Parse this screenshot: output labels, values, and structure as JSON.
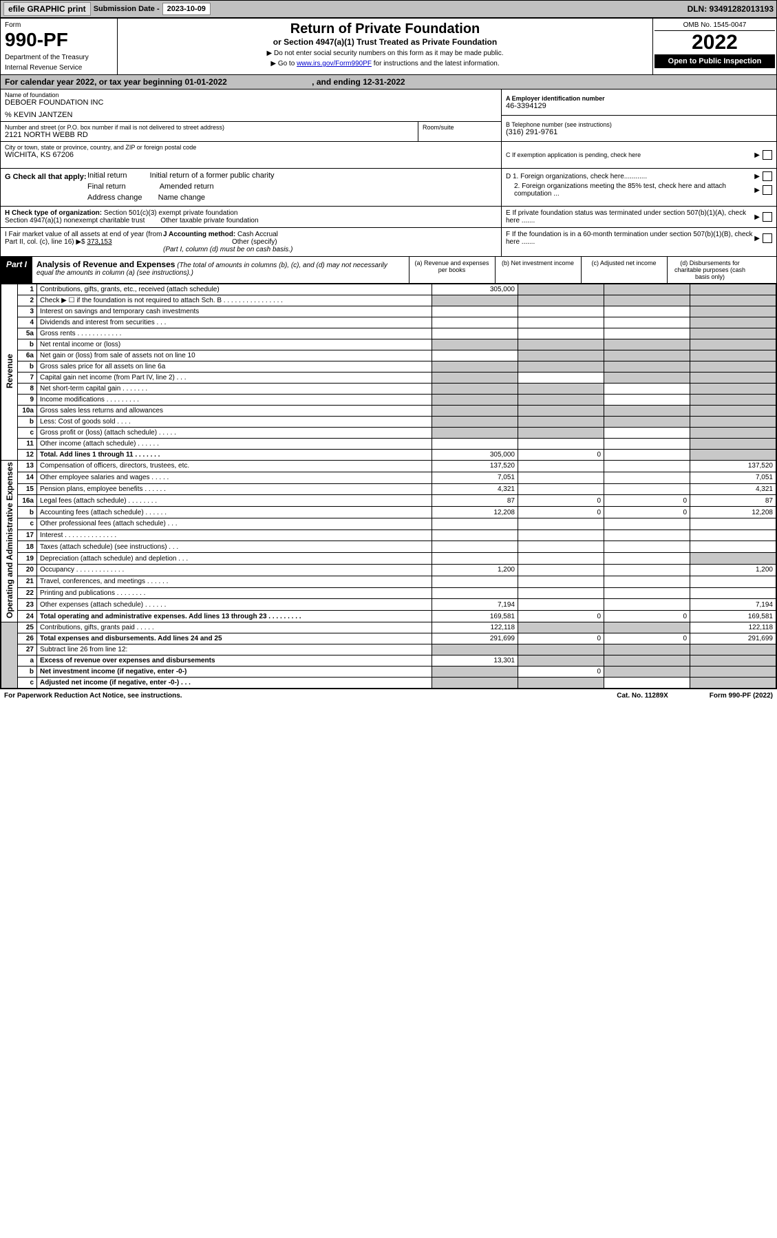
{
  "topbar": {
    "efile": "efile GRAPHIC print",
    "sub_label": "Submission Date - ",
    "sub_date": "2023-10-09",
    "dln": "DLN: 93491282013193"
  },
  "header": {
    "form_label": "Form",
    "form_no": "990-PF",
    "dept1": "Department of the Treasury",
    "dept2": "Internal Revenue Service",
    "title": "Return of Private Foundation",
    "subtitle": "or Section 4947(a)(1) Trust Treated as Private Foundation",
    "note1": "▶ Do not enter social security numbers on this form as it may be made public.",
    "note2_pre": "▶ Go to ",
    "note2_link": "www.irs.gov/Form990PF",
    "note2_post": " for instructions and the latest information.",
    "omb": "OMB No. 1545-0047",
    "year": "2022",
    "open": "Open to Public Inspection"
  },
  "cal": {
    "text_pre": "For calendar year 2022, or tax year beginning ",
    "begin": "01-01-2022",
    "text_mid": " , and ending ",
    "end": "12-31-2022"
  },
  "foundation": {
    "name_lbl": "Name of foundation",
    "name": "DEBOER FOUNDATION INC",
    "care_of": "% KEVIN JANTZEN",
    "addr_lbl": "Number and street (or P.O. box number if mail is not delivered to street address)",
    "addr": "2121 NORTH WEBB RD",
    "room_lbl": "Room/suite",
    "city_lbl": "City or town, state or province, country, and ZIP or foreign postal code",
    "city": "WICHITA, KS  67206"
  },
  "right_info": {
    "a_lbl": "A Employer identification number",
    "a_val": "46-3394129",
    "b_lbl": "B Telephone number (see instructions)",
    "b_val": "(316) 291-9761",
    "c_lbl": "C If exemption application is pending, check here"
  },
  "g": {
    "label": "G Check all that apply:",
    "opts": [
      "Initial return",
      "Initial return of a former public charity",
      "Final return",
      "Amended return",
      "Address change",
      "Name change"
    ]
  },
  "d": {
    "d1": "D 1. Foreign organizations, check here............",
    "d2": "2. Foreign organizations meeting the 85% test, check here and attach computation ...",
    "e": "E If private foundation status was terminated under section 507(b)(1)(A), check here .......",
    "f": "F If the foundation is in a 60-month termination under section 507(b)(1)(B), check here ......."
  },
  "h": {
    "label": "H Check type of organization:",
    "opt1": "Section 501(c)(3) exempt private foundation",
    "opt2": "Section 4947(a)(1) nonexempt charitable trust",
    "opt3": "Other taxable private foundation"
  },
  "i": {
    "label": "I Fair market value of all assets at end of year (from Part II, col. (c), line 16) ▶$",
    "val": "373,153"
  },
  "j": {
    "label": "J Accounting method:",
    "cash": "Cash",
    "accrual": "Accrual",
    "other": "Other (specify)",
    "note": "(Part I, column (d) must be on cash basis.)"
  },
  "part1": {
    "tag": "Part I",
    "title": "Analysis of Revenue and Expenses",
    "title_note": "(The total of amounts in columns (b), (c), and (d) may not necessarily equal the amounts in column (a) (see instructions).)",
    "col_a": "(a) Revenue and expenses per books",
    "col_b": "(b) Net investment income",
    "col_c": "(c) Adjusted net income",
    "col_d": "(d) Disbursements for charitable purposes (cash basis only)"
  },
  "sections": {
    "revenue": "Revenue",
    "opex": "Operating and Administrative Expenses"
  },
  "rows": [
    {
      "n": "1",
      "d": "Contributions, gifts, grants, etc., received (attach schedule)",
      "a": "305,000",
      "b": "s",
      "c": "s",
      "dd": "s"
    },
    {
      "n": "2",
      "d": "Check ▶ ☐ if the foundation is not required to attach Sch. B   .   .   .   .   .   .   .   .   .   .   .   .   .   .   .   .",
      "a": "s",
      "b": "s",
      "c": "s",
      "dd": "s"
    },
    {
      "n": "3",
      "d": "Interest on savings and temporary cash investments",
      "a": "",
      "b": "",
      "c": "",
      "dd": "s"
    },
    {
      "n": "4",
      "d": "Dividends and interest from securities   .   .   .",
      "a": "",
      "b": "",
      "c": "",
      "dd": "s"
    },
    {
      "n": "5a",
      "d": "Gross rents   .   .   .   .   .   .   .   .   .   .   .   .",
      "a": "",
      "b": "",
      "c": "",
      "dd": "s"
    },
    {
      "n": "b",
      "d": "Net rental income or (loss)  ",
      "a": "s",
      "b": "s",
      "c": "s",
      "dd": "s"
    },
    {
      "n": "6a",
      "d": "Net gain or (loss) from sale of assets not on line 10",
      "a": "",
      "b": "s",
      "c": "s",
      "dd": "s"
    },
    {
      "n": "b",
      "d": "Gross sales price for all assets on line 6a",
      "a": "s",
      "b": "s",
      "c": "s",
      "dd": "s"
    },
    {
      "n": "7",
      "d": "Capital gain net income (from Part IV, line 2)   .   .   .",
      "a": "s",
      "b": "",
      "c": "s",
      "dd": "s"
    },
    {
      "n": "8",
      "d": "Net short-term capital gain   .   .   .   .   .   .   .",
      "a": "s",
      "b": "s",
      "c": "",
      "dd": "s"
    },
    {
      "n": "9",
      "d": "Income modifications   .   .   .   .   .   .   .   .   .",
      "a": "s",
      "b": "s",
      "c": "",
      "dd": "s"
    },
    {
      "n": "10a",
      "d": "Gross sales less returns and allowances",
      "a": "s",
      "b": "s",
      "c": "s",
      "dd": "s"
    },
    {
      "n": "b",
      "d": "Less: Cost of goods sold   .   .   .   .",
      "a": "s",
      "b": "s",
      "c": "s",
      "dd": "s"
    },
    {
      "n": "c",
      "d": "Gross profit or (loss) (attach schedule)   .   .   .   .   .",
      "a": "s",
      "b": "s",
      "c": "",
      "dd": "s"
    },
    {
      "n": "11",
      "d": "Other income (attach schedule)   .   .   .   .   .   .",
      "a": "",
      "b": "",
      "c": "",
      "dd": "s"
    },
    {
      "n": "12",
      "d": "Total. Add lines 1 through 11   .   .   .   .   .   .   .",
      "a": "305,000",
      "b": "0",
      "c": "",
      "dd": "s",
      "bold": true
    },
    {
      "n": "13",
      "d": "Compensation of officers, directors, trustees, etc.",
      "a": "137,520",
      "b": "",
      "c": "",
      "dd": "137,520"
    },
    {
      "n": "14",
      "d": "Other employee salaries and wages   .   .   .   .   .",
      "a": "7,051",
      "b": "",
      "c": "",
      "dd": "7,051"
    },
    {
      "n": "15",
      "d": "Pension plans, employee benefits   .   .   .   .   .   .",
      "a": "4,321",
      "b": "",
      "c": "",
      "dd": "4,321"
    },
    {
      "n": "16a",
      "d": "Legal fees (attach schedule)   .   .   .   .   .   .   .   .",
      "a": "87",
      "b": "0",
      "c": "0",
      "dd": "87"
    },
    {
      "n": "b",
      "d": "Accounting fees (attach schedule)   .   .   .   .   .   .",
      "a": "12,208",
      "b": "0",
      "c": "0",
      "dd": "12,208"
    },
    {
      "n": "c",
      "d": "Other professional fees (attach schedule)   .   .   .",
      "a": "",
      "b": "",
      "c": "",
      "dd": ""
    },
    {
      "n": "17",
      "d": "Interest   .   .   .   .   .   .   .   .   .   .   .   .   .   .",
      "a": "",
      "b": "",
      "c": "",
      "dd": ""
    },
    {
      "n": "18",
      "d": "Taxes (attach schedule) (see instructions)   .   .   .",
      "a": "",
      "b": "",
      "c": "",
      "dd": ""
    },
    {
      "n": "19",
      "d": "Depreciation (attach schedule) and depletion   .   .   .",
      "a": "",
      "b": "",
      "c": "",
      "dd": "s"
    },
    {
      "n": "20",
      "d": "Occupancy   .   .   .   .   .   .   .   .   .   .   .   .   .",
      "a": "1,200",
      "b": "",
      "c": "",
      "dd": "1,200"
    },
    {
      "n": "21",
      "d": "Travel, conferences, and meetings   .   .   .   .   .   .",
      "a": "",
      "b": "",
      "c": "",
      "dd": ""
    },
    {
      "n": "22",
      "d": "Printing and publications   .   .   .   .   .   .   .   .",
      "a": "",
      "b": "",
      "c": "",
      "dd": ""
    },
    {
      "n": "23",
      "d": "Other expenses (attach schedule)   .   .   .   .   .   .",
      "a": "7,194",
      "b": "",
      "c": "",
      "dd": "7,194"
    },
    {
      "n": "24",
      "d": "Total operating and administrative expenses. Add lines 13 through 23   .   .   .   .   .   .   .   .   .",
      "a": "169,581",
      "b": "0",
      "c": "0",
      "dd": "169,581",
      "bold": true
    },
    {
      "n": "25",
      "d": "Contributions, gifts, grants paid   .   .   .   .   .",
      "a": "122,118",
      "b": "s",
      "c": "s",
      "dd": "122,118"
    },
    {
      "n": "26",
      "d": "Total expenses and disbursements. Add lines 24 and 25",
      "a": "291,699",
      "b": "0",
      "c": "0",
      "dd": "291,699",
      "bold": true
    },
    {
      "n": "27",
      "d": "Subtract line 26 from line 12:",
      "a": "s",
      "b": "s",
      "c": "s",
      "dd": "s"
    },
    {
      "n": "a",
      "d": "Excess of revenue over expenses and disbursements",
      "a": "13,301",
      "b": "s",
      "c": "s",
      "dd": "s",
      "bold": true
    },
    {
      "n": "b",
      "d": "Net investment income (if negative, enter -0-)",
      "a": "s",
      "b": "0",
      "c": "s",
      "dd": "s",
      "bold": true
    },
    {
      "n": "c",
      "d": "Adjusted net income (if negative, enter -0-)   .   .   .",
      "a": "s",
      "b": "s",
      "c": "",
      "dd": "s",
      "bold": true
    }
  ],
  "footer": {
    "left": "For Paperwork Reduction Act Notice, see instructions.",
    "mid": "Cat. No. 11289X",
    "right": "Form 990-PF (2022)"
  }
}
